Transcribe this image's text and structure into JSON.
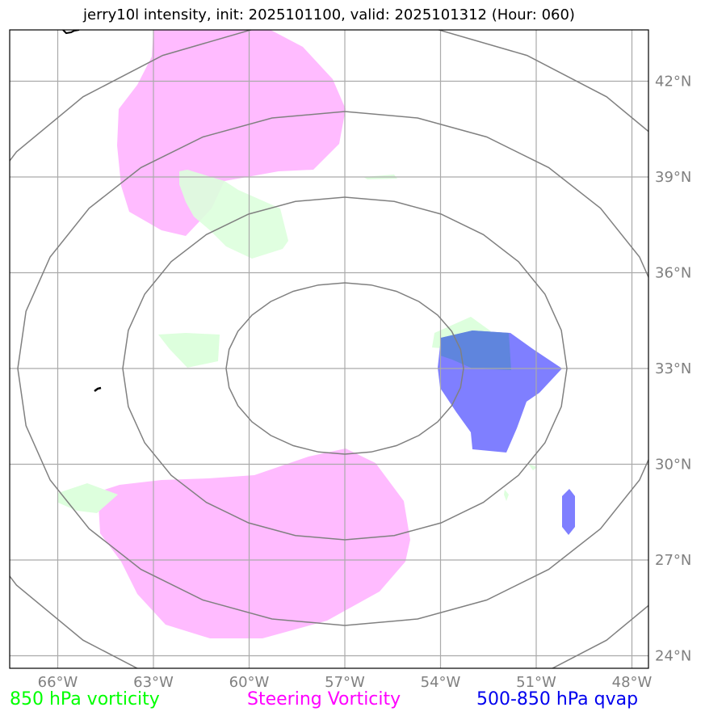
{
  "title": "jerry10l intensity, init: 2025101100, valid: 2025101312 (Hour: 060)",
  "map": {
    "lon_range": [
      -67.5,
      -47.0
    ],
    "lat_range": [
      23.6,
      43.6
    ],
    "x_tick_labels": [
      {
        "lon": -66,
        "label": "66°W"
      },
      {
        "lon": -63,
        "label": "63°W"
      },
      {
        "lon": -60,
        "label": "60°W"
      },
      {
        "lon": -57,
        "label": "57°W"
      },
      {
        "lon": -54,
        "label": "54°W"
      },
      {
        "lon": -51,
        "label": "51°W"
      },
      {
        "lon": -48,
        "label": "48°W"
      }
    ],
    "y_tick_labels": [
      {
        "lat": 42,
        "label": "42°N"
      },
      {
        "lat": 39,
        "label": "39°N"
      },
      {
        "lat": 36,
        "label": "36°N"
      },
      {
        "lat": 33,
        "label": "33°N"
      },
      {
        "lat": 30,
        "label": "30°N"
      },
      {
        "lat": 27,
        "label": "27°N"
      },
      {
        "lat": 24,
        "label": "24°N"
      }
    ],
    "grid": true,
    "range_rings_center": {
      "lon": -57,
      "lat": 33
    },
    "range_rings_count": 4
  },
  "legend": [
    {
      "label": "850 hPa vorticity",
      "color": "#00ff00"
    },
    {
      "label": "Steering Vorticity",
      "color": "#ff00ff"
    },
    {
      "label": "500-850 hPa qvap",
      "color": "#0000ee"
    }
  ],
  "colors": {
    "vorticity_850": "#ddffdd",
    "steering_vorticity": "#ffbbff",
    "qvap": "#7f7fff",
    "ring": "#808080",
    "grid": "#aaaaaa",
    "tick_label": "#808080"
  }
}
